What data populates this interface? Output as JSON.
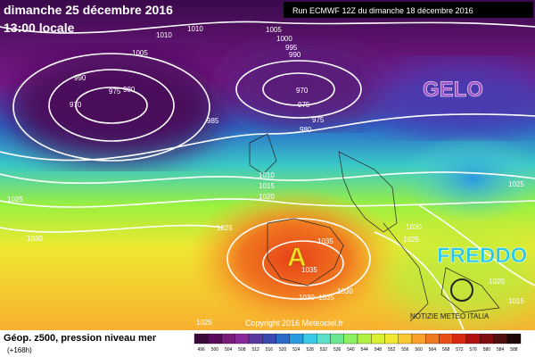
{
  "header": {
    "date": "dimanche 25 décembre 2016",
    "time": "13:00 locale",
    "run": "Run ECMWF 12Z du dimanche 18 décembre 2016"
  },
  "annotations": {
    "cold_north": "GELO",
    "cold_east": "FREDDO",
    "high": "A",
    "copyright": "Copyright 2016 Meteociel.fr",
    "brand": "NOTIZIE METEO ITALIA"
  },
  "isobar_labels": [
    1010,
    1010,
    1005,
    990,
    975,
    980,
    970,
    1005,
    1000,
    995,
    990,
    970,
    975,
    985,
    975,
    980,
    1010,
    1015,
    1020,
    1025,
    1030,
    1025,
    1035,
    1035,
    1030,
    1035,
    1030,
    1025,
    1030,
    1025,
    1020,
    1015,
    1025
  ],
  "footer": {
    "title": "Géop. z500, pression niveau mer",
    "lead": "(+168h)"
  },
  "colorbar": {
    "values": [
      496,
      500,
      504,
      508,
      512,
      516,
      520,
      524,
      528,
      532,
      536,
      540,
      544,
      548,
      552,
      556,
      560,
      564,
      568,
      572,
      576,
      580,
      584,
      588
    ],
    "colors": [
      "#3a0a3a",
      "#5a0a5a",
      "#7a1a7a",
      "#8a2a9a",
      "#5a3aa0",
      "#3a4ab0",
      "#2a6ac8",
      "#2a9ae0",
      "#3ac8e8",
      "#5ae0c8",
      "#6ae890",
      "#8af060",
      "#b0f040",
      "#d8f030",
      "#f0e830",
      "#f8c830",
      "#f8a028",
      "#f07820",
      "#e85018",
      "#d82810",
      "#b01010",
      "#801010",
      "#501010",
      "#200808"
    ]
  }
}
